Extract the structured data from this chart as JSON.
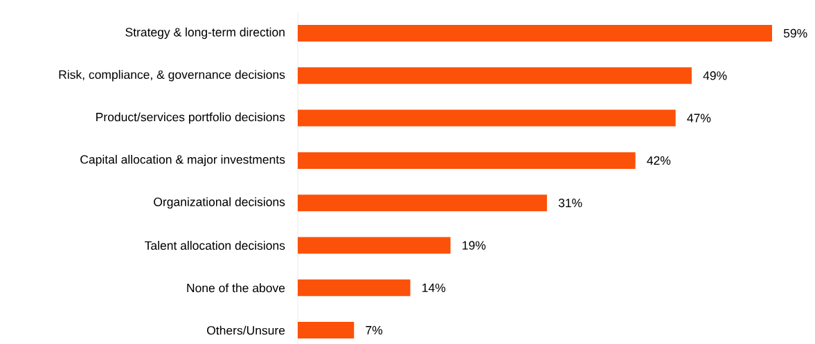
{
  "chart_data": {
    "type": "bar",
    "orientation": "horizontal",
    "categories": [
      "Strategy & long-term direction",
      "Risk, compliance, & governance decisions",
      "Product/services portfolio decisions",
      "Capital allocation & major investments",
      "Organizational decisions",
      "Talent allocation decisions",
      "None of the above",
      "Others/Unsure"
    ],
    "values": [
      59,
      49,
      47,
      42,
      31,
      19,
      14,
      7
    ],
    "value_labels": [
      "59%",
      "49%",
      "47%",
      "42%",
      "31%",
      "19%",
      "14%",
      "7%"
    ],
    "color": "#fc5108"
  }
}
